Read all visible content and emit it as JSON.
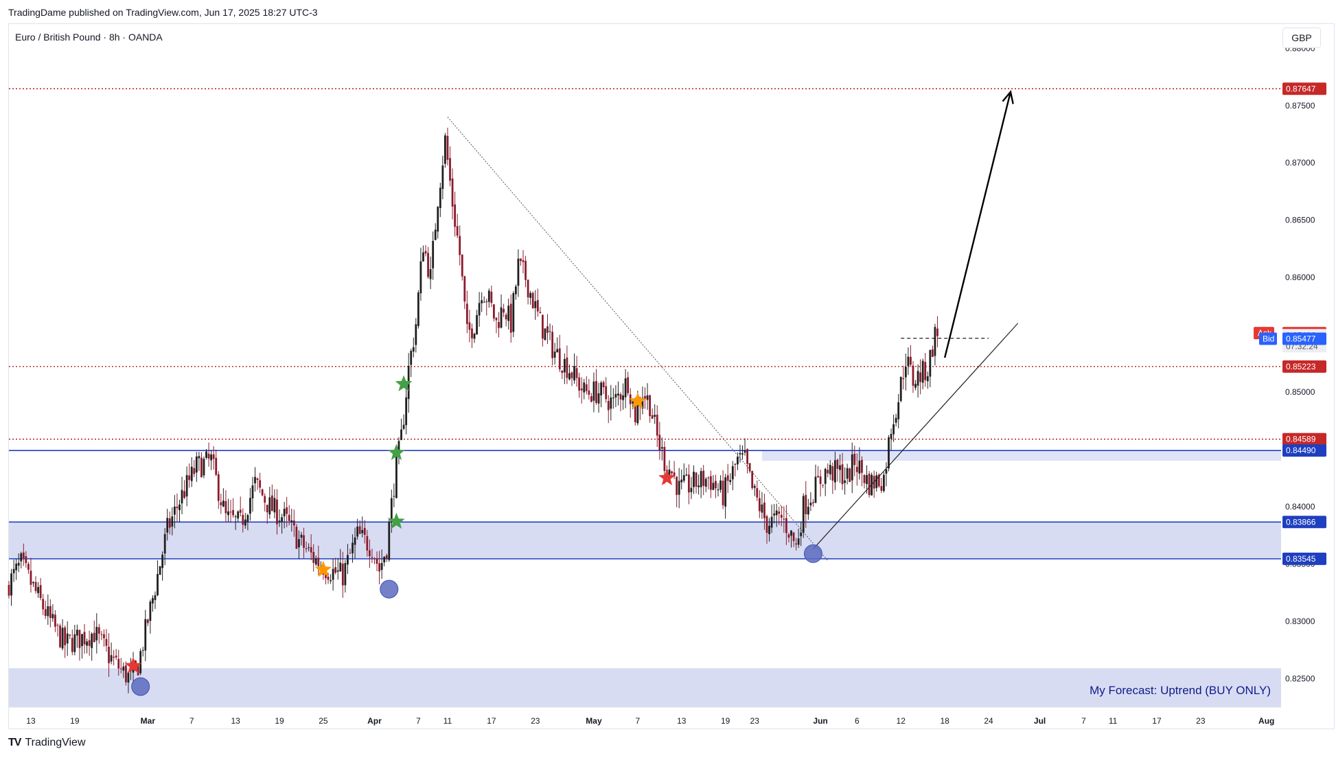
{
  "header": {
    "published_by": "TradingDame published on TradingView.com, Jun 17, 2025 18:27 UTC-3"
  },
  "symbol": {
    "title": "Euro / British Pound · 8h · OANDA",
    "currency": "GBP"
  },
  "footer": {
    "logo_mark": "TV",
    "brand": "TradingView"
  },
  "chart_data": {
    "type": "candlestick",
    "ylim": [
      0.8225,
      0.8805
    ],
    "y_ticks": [
      0.825,
      0.83,
      0.835,
      0.84,
      0.845,
      0.85,
      0.855,
      0.86,
      0.865,
      0.87,
      0.875,
      0.88
    ],
    "y_tick_labels": [
      "0.82500",
      "0.83000",
      "0.83500",
      "0.84000",
      "0.84500",
      "0.85000",
      "0.85500",
      "0.86000",
      "0.86500",
      "0.87000",
      "0.87500",
      "0.88000"
    ],
    "x_start": "2025-02-10",
    "x_end": "2025-08-03",
    "x_ticks": [
      {
        "date": "2025-02-13",
        "label": "13"
      },
      {
        "date": "2025-02-19",
        "label": "19"
      },
      {
        "date": "2025-03-01",
        "label": "Mar"
      },
      {
        "date": "2025-03-07",
        "label": "7"
      },
      {
        "date": "2025-03-13",
        "label": "13"
      },
      {
        "date": "2025-03-19",
        "label": "19"
      },
      {
        "date": "2025-03-25",
        "label": "25"
      },
      {
        "date": "2025-04-01",
        "label": "Apr"
      },
      {
        "date": "2025-04-07",
        "label": "7"
      },
      {
        "date": "2025-04-11",
        "label": "11"
      },
      {
        "date": "2025-04-17",
        "label": "17"
      },
      {
        "date": "2025-04-23",
        "label": "23"
      },
      {
        "date": "2025-05-01",
        "label": "May"
      },
      {
        "date": "2025-05-07",
        "label": "7"
      },
      {
        "date": "2025-05-13",
        "label": "13"
      },
      {
        "date": "2025-05-19",
        "label": "19"
      },
      {
        "date": "2025-05-23",
        "label": "23"
      },
      {
        "date": "2025-06-01",
        "label": "Jun"
      },
      {
        "date": "2025-06-06",
        "label": "6"
      },
      {
        "date": "2025-06-12",
        "label": "12"
      },
      {
        "date": "2025-06-18",
        "label": "18"
      },
      {
        "date": "2025-06-24",
        "label": "24"
      },
      {
        "date": "2025-07-01",
        "label": "Jul"
      },
      {
        "date": "2025-07-07",
        "label": "7"
      },
      {
        "date": "2025-07-11",
        "label": "11"
      },
      {
        "date": "2025-07-17",
        "label": "17"
      },
      {
        "date": "2025-07-23",
        "label": "23"
      },
      {
        "date": "2025-08-01",
        "label": "Aug"
      }
    ],
    "price_path": [
      [
        "2025-02-10",
        0.833
      ],
      [
        "2025-02-12",
        0.835
      ],
      [
        "2025-02-14",
        0.8325
      ],
      [
        "2025-02-16",
        0.83
      ],
      [
        "2025-02-18",
        0.828
      ],
      [
        "2025-02-20",
        0.8285
      ],
      [
        "2025-02-22",
        0.829
      ],
      [
        "2025-02-24",
        0.827
      ],
      [
        "2025-02-26",
        0.8255
      ],
      [
        "2025-02-27",
        0.825
      ],
      [
        "2025-02-28",
        0.8262
      ],
      [
        "2025-03-02",
        0.832
      ],
      [
        "2025-03-04",
        0.838
      ],
      [
        "2025-03-06",
        0.841
      ],
      [
        "2025-03-08",
        0.8435
      ],
      [
        "2025-03-10",
        0.844
      ],
      [
        "2025-03-12",
        0.839
      ],
      [
        "2025-03-14",
        0.8385
      ],
      [
        "2025-03-16",
        0.842
      ],
      [
        "2025-03-18",
        0.84
      ],
      [
        "2025-03-20",
        0.839
      ],
      [
        "2025-03-22",
        0.837
      ],
      [
        "2025-03-24",
        0.8355
      ],
      [
        "2025-03-26",
        0.8345
      ],
      [
        "2025-03-28",
        0.834
      ],
      [
        "2025-03-30",
        0.8375
      ],
      [
        "2025-04-01",
        0.8365
      ],
      [
        "2025-04-02",
        0.8345
      ],
      [
        "2025-04-03",
        0.8365
      ],
      [
        "2025-04-04",
        0.842
      ],
      [
        "2025-04-05",
        0.846
      ],
      [
        "2025-04-06",
        0.852
      ],
      [
        "2025-04-07",
        0.856
      ],
      [
        "2025-04-08",
        0.863
      ],
      [
        "2025-04-09",
        0.86
      ],
      [
        "2025-04-10",
        0.867
      ],
      [
        "2025-04-11",
        0.872
      ],
      [
        "2025-04-12",
        0.8665
      ],
      [
        "2025-04-13",
        0.862
      ],
      [
        "2025-04-14",
        0.855
      ],
      [
        "2025-04-15",
        0.856
      ],
      [
        "2025-04-16",
        0.859
      ],
      [
        "2025-04-17",
        0.858
      ],
      [
        "2025-04-18",
        0.856
      ],
      [
        "2025-04-19",
        0.8575
      ],
      [
        "2025-04-20",
        0.856
      ],
      [
        "2025-04-21",
        0.861
      ],
      [
        "2025-04-22",
        0.86
      ],
      [
        "2025-04-23",
        0.858
      ],
      [
        "2025-04-24",
        0.856
      ],
      [
        "2025-04-26",
        0.8535
      ],
      [
        "2025-04-28",
        0.852
      ],
      [
        "2025-04-30",
        0.85
      ],
      [
        "2025-05-02",
        0.85
      ],
      [
        "2025-05-04",
        0.849
      ],
      [
        "2025-05-06",
        0.851
      ],
      [
        "2025-05-07",
        0.848
      ],
      [
        "2025-05-08",
        0.85
      ],
      [
        "2025-05-09",
        0.849
      ],
      [
        "2025-05-10",
        0.846
      ],
      [
        "2025-05-11",
        0.844
      ],
      [
        "2025-05-12",
        0.843
      ],
      [
        "2025-05-13",
        0.8415
      ],
      [
        "2025-05-15",
        0.842
      ],
      [
        "2025-05-17",
        0.8425
      ],
      [
        "2025-05-19",
        0.841
      ],
      [
        "2025-05-21",
        0.844
      ],
      [
        "2025-05-22",
        0.844
      ],
      [
        "2025-05-23",
        0.8415
      ],
      [
        "2025-05-24",
        0.84
      ],
      [
        "2025-05-25",
        0.8385
      ],
      [
        "2025-05-27",
        0.839
      ],
      [
        "2025-05-28",
        0.838
      ],
      [
        "2025-05-29",
        0.8365
      ],
      [
        "2025-05-30",
        0.84
      ],
      [
        "2025-05-31",
        0.841
      ],
      [
        "2025-06-02",
        0.843
      ],
      [
        "2025-06-04",
        0.843
      ],
      [
        "2025-06-05",
        0.8425
      ],
      [
        "2025-06-06",
        0.844
      ],
      [
        "2025-06-08",
        0.842
      ],
      [
        "2025-06-10",
        0.8425
      ],
      [
        "2025-06-11",
        0.847
      ],
      [
        "2025-06-12",
        0.8495
      ],
      [
        "2025-06-13",
        0.853
      ],
      [
        "2025-06-14",
        0.851
      ],
      [
        "2025-06-15",
        0.8515
      ],
      [
        "2025-06-16",
        0.852
      ],
      [
        "2025-06-17",
        0.855
      ]
    ],
    "horizontal_levels": [
      {
        "price": 0.87647,
        "label": "0.87647",
        "style": "dotted",
        "color": "#b71c1c"
      },
      {
        "price": 0.85223,
        "label": "0.85223",
        "style": "dotted",
        "color": "#b71c1c"
      },
      {
        "price": 0.84589,
        "label": "0.84589",
        "style": "dotted",
        "color": "#b71c1c"
      },
      {
        "price": 0.8449,
        "label": "0.84490",
        "style": "solid",
        "color": "#1e3fbf"
      },
      {
        "price": 0.83866,
        "label": "0.83866",
        "style": "solid",
        "color": "#1e3fbf"
      },
      {
        "price": 0.83545,
        "label": "0.83545",
        "style": "solid",
        "color": "#1e3fbf"
      }
    ],
    "zones": [
      {
        "from": 0.83545,
        "to": 0.83866,
        "color": "#d8dcf2"
      },
      {
        "from": 0.844,
        "to": 0.8449,
        "color": "#dfe3f6",
        "start": "2025-05-24"
      },
      {
        "from": 0.8225,
        "to": 0.8259,
        "color": "#d8dcf2"
      }
    ],
    "price_labels": {
      "ask_tag": "Ask",
      "ask": "0.85515",
      "last": "0.85496",
      "countdown": "07:32:24",
      "bid_tag": "Bid",
      "bid": "0.85477"
    },
    "annotation": "My Forecast: Uptrend (BUY ONLY)",
    "drawings": {
      "downtrend_line": {
        "from": [
          "2025-04-11",
          0.874
        ],
        "to": [
          "2025-06-02",
          0.8353
        ]
      },
      "uptrend_line": {
        "from": [
          "2025-05-31",
          0.8363
        ],
        "to": [
          "2025-06-28",
          0.856
        ]
      },
      "breakout_dash": {
        "from": [
          "2025-06-12",
          0.8547
        ],
        "to": [
          "2025-06-24",
          0.8547
        ]
      },
      "forecast_arrow": {
        "from": [
          "2025-06-18",
          0.853
        ],
        "to": [
          "2025-06-27",
          0.8762
        ]
      }
    },
    "markers": [
      {
        "kind": "star",
        "date": "2025-02-27",
        "price": 0.8261,
        "color": "#e53935"
      },
      {
        "kind": "circle",
        "date": "2025-02-28",
        "price": 0.8243,
        "color": "#5c6bc0"
      },
      {
        "kind": "star",
        "date": "2025-03-25",
        "price": 0.8345,
        "color": "#ff9800"
      },
      {
        "kind": "circle",
        "date": "2025-04-03",
        "price": 0.8328,
        "color": "#5c6bc0"
      },
      {
        "kind": "star",
        "date": "2025-04-04",
        "price": 0.8387,
        "color": "#43a047"
      },
      {
        "kind": "star",
        "date": "2025-04-04",
        "price": 0.8447,
        "color": "#43a047"
      },
      {
        "kind": "star",
        "date": "2025-04-05",
        "price": 0.8507,
        "color": "#43a047"
      },
      {
        "kind": "star",
        "date": "2025-05-07",
        "price": 0.8492,
        "color": "#ff9800"
      },
      {
        "kind": "star",
        "date": "2025-05-11",
        "price": 0.8425,
        "color": "#e53935"
      },
      {
        "kind": "circle",
        "date": "2025-05-31",
        "price": 0.8359,
        "color": "#5c6bc0"
      }
    ]
  }
}
